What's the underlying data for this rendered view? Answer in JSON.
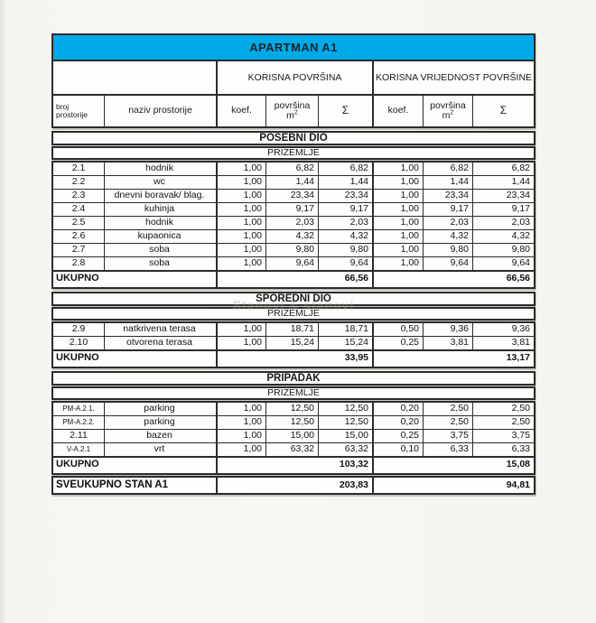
{
  "title": "APARTMAN A1",
  "watermark": "Stanovi & stanovi",
  "colors": {
    "accent_cyan": "#00aae6",
    "border": "#2b2b2b",
    "paper": "#f6f5f1"
  },
  "header": {
    "group_left": "KORISNA POVRŠINA",
    "group_right": "KORISNA VRIJEDNOST POVRŠINE",
    "col_room_no_line1": "broj",
    "col_room_no_line2": "prostorije",
    "col_room_name": "naziv prostorije",
    "col_coef": "koef.",
    "col_area": "površina",
    "col_area_unit_base": "m",
    "col_area_unit_exp": "2",
    "col_sigma": "Σ"
  },
  "sections": [
    {
      "name": "POSEBNI DIO",
      "floor": "PRIZEMLJE",
      "rows": [
        [
          "2.1",
          "hodnik",
          "1,00",
          "6,82",
          "6,82",
          "1,00",
          "6,82",
          "6,82"
        ],
        [
          "2.2",
          "wc",
          "1,00",
          "1,44",
          "1,44",
          "1,00",
          "1,44",
          "1,44"
        ],
        [
          "2.3",
          "dnevni boravak/ blag.",
          "1,00",
          "23,34",
          "23,34",
          "1,00",
          "23,34",
          "23,34"
        ],
        [
          "2.4",
          "kuhinja",
          "1,00",
          "9,17",
          "9,17",
          "1,00",
          "9,17",
          "9,17"
        ],
        [
          "2.5",
          "hodnik",
          "1,00",
          "2,03",
          "2,03",
          "1,00",
          "2,03",
          "2,03"
        ],
        [
          "2.6",
          "kupaonica",
          "1,00",
          "4,32",
          "4,32",
          "1,00",
          "4,32",
          "4,32"
        ],
        [
          "2.7",
          "soba",
          "1,00",
          "9,80",
          "9,80",
          "1,00",
          "9,80",
          "9,80"
        ],
        [
          "2.8",
          "soba",
          "1,00",
          "9,64",
          "9,64",
          "1,00",
          "9,64",
          "9,64"
        ]
      ],
      "total_label": "UKUPNO",
      "total_korisna": "66,56",
      "total_vrijednost": "66,56"
    },
    {
      "name": "SPOREDNI DIO",
      "floor": "PRIZEMLJE",
      "rows": [
        [
          "2.9",
          "natkrivena terasa",
          "1,00",
          "18,71",
          "18,71",
          "0,50",
          "9,36",
          "9,36"
        ],
        [
          "2.10",
          "otvorena terasa",
          "1,00",
          "15,24",
          "15,24",
          "0,25",
          "3,81",
          "3,81"
        ]
      ],
      "total_label": "UKUPNO",
      "total_korisna": "33,95",
      "total_vrijednost": "13,17"
    },
    {
      "name": "PRIPADAK",
      "floor": "PRIZEMLJE",
      "rows": [
        [
          "PM-A.2.1.",
          "parking",
          "1,00",
          "12,50",
          "12,50",
          "0,20",
          "2,50",
          "2,50"
        ],
        [
          "PM-A.2.2.",
          "parking",
          "1,00",
          "12,50",
          "12,50",
          "0,20",
          "2,50",
          "2,50"
        ],
        [
          "2.11",
          "bazen",
          "1,00",
          "15,00",
          "15,00",
          "0,25",
          "3,75",
          "3,75"
        ],
        [
          "V-A.2.1",
          "vrt",
          "1,00",
          "63,32",
          "63,32",
          "0,10",
          "6,33",
          "6,33"
        ]
      ],
      "total_label": "UKUPNO",
      "total_korisna": "103,32",
      "total_vrijednost": "15,08"
    }
  ],
  "grand_total": {
    "label": "SVEUKUPNO STAN A1",
    "korisna": "203,83",
    "vrijednost": "94,81"
  }
}
